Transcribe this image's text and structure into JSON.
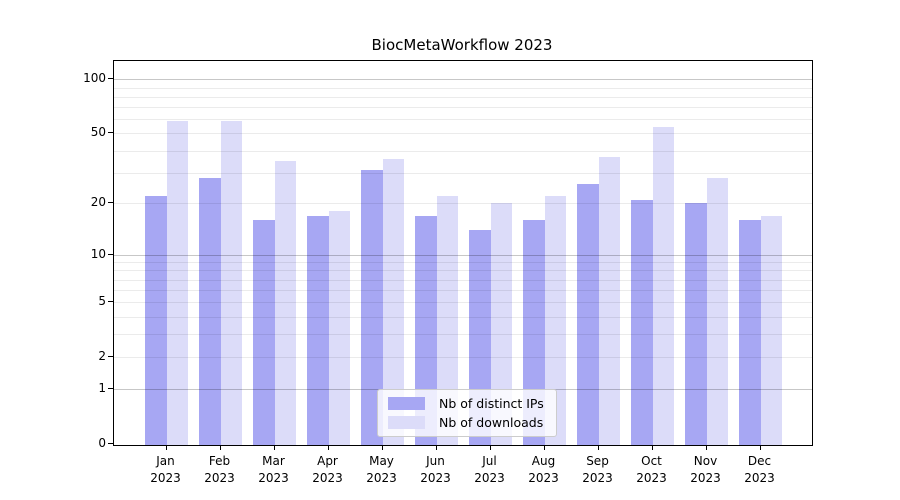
{
  "chart_data": {
    "type": "bar",
    "title": "BiocMetaWorkflow 2023",
    "categories": [
      "Jan 2023",
      "Feb 2023",
      "Mar 2023",
      "Apr 2023",
      "May 2023",
      "Jun 2023",
      "Jul 2023",
      "Aug 2023",
      "Sep 2023",
      "Oct 2023",
      "Nov 2023",
      "Dec 2023"
    ],
    "series": [
      {
        "name": "Nb of distinct IPs",
        "color": "#a7a7f3",
        "values": [
          22,
          28,
          16,
          17,
          31,
          17,
          14,
          16,
          26,
          21,
          20,
          16
        ]
      },
      {
        "name": "Nb of downloads",
        "color": "#dcdcf9",
        "values": [
          59,
          59,
          35,
          18,
          36,
          22,
          20,
          22,
          37,
          54,
          28,
          17
        ]
      }
    ],
    "xlabel": "",
    "ylabel": "",
    "yscale": "log1p",
    "ylim": [
      0,
      127
    ],
    "yticks": [
      0,
      1,
      2,
      5,
      10,
      20,
      50,
      100
    ],
    "ytick_labels": [
      "0",
      "1",
      "2",
      "5",
      "10",
      "20",
      "50",
      "100"
    ],
    "major_gridlines": [
      1,
      10,
      100
    ],
    "minor_gridlines": [
      2,
      3,
      4,
      5,
      6,
      7,
      8,
      9,
      20,
      30,
      40,
      50,
      60,
      70,
      80,
      90
    ],
    "grid": "horizontal",
    "legend_position": "lower center",
    "colors": {
      "major_grid": "rgba(0,0,0,0.22)",
      "minor_grid": "rgba(0,0,0,0.08)",
      "spine": "#000000",
      "text": "#000000"
    }
  }
}
